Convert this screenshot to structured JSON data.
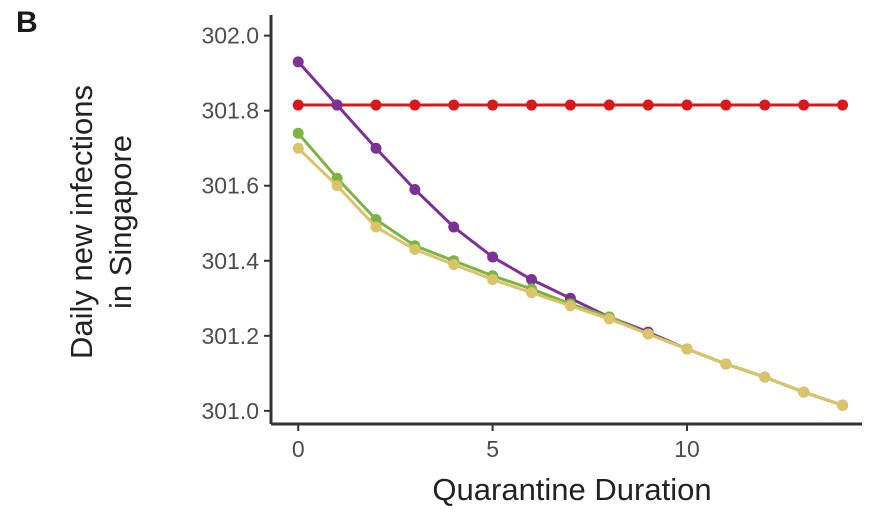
{
  "panel_label": "B",
  "chart_data": {
    "type": "line",
    "xlabel": "Quarantine Duration",
    "ylabel_lines": [
      "Daily new infections",
      "in Singapore"
    ],
    "xlim": [
      -0.7,
      14.5
    ],
    "ylim": [
      300.965,
      302.055
    ],
    "x_ticks": [
      0,
      5,
      10
    ],
    "x_tick_labels": [
      "0",
      "5",
      "10"
    ],
    "y_ticks": [
      301.0,
      301.2,
      301.4,
      301.6,
      301.8,
      302.0
    ],
    "y_tick_labels": [
      "301.0",
      "301.2",
      "301.4",
      "301.6",
      "301.8",
      "302.0"
    ],
    "grid": false,
    "legend": "none",
    "x": [
      0,
      1,
      2,
      3,
      4,
      5,
      6,
      7,
      8,
      9,
      10,
      11,
      12,
      13,
      14
    ],
    "series": [
      {
        "color": "#d7191c",
        "values": [
          301.815,
          301.815,
          301.815,
          301.815,
          301.815,
          301.815,
          301.815,
          301.815,
          301.815,
          301.815,
          301.815,
          301.815,
          301.815,
          301.815,
          301.815
        ]
      },
      {
        "color": "#7b3294",
        "values": [
          301.93,
          301.815,
          301.7,
          301.59,
          301.49,
          301.41,
          301.35,
          301.3,
          301.25,
          301.21,
          301.165,
          301.125,
          301.09,
          301.05,
          301.015
        ]
      },
      {
        "color": "#7cb342",
        "values": [
          301.74,
          301.62,
          301.51,
          301.44,
          301.4,
          301.36,
          301.325,
          301.285,
          301.25,
          301.205,
          301.165,
          301.125,
          301.09,
          301.05,
          301.015
        ]
      },
      {
        "color": "#d9c36b",
        "values": [
          301.7,
          301.6,
          301.49,
          301.43,
          301.39,
          301.35,
          301.315,
          301.28,
          301.245,
          301.205,
          301.165,
          301.125,
          301.09,
          301.05,
          301.015
        ]
      }
    ]
  }
}
